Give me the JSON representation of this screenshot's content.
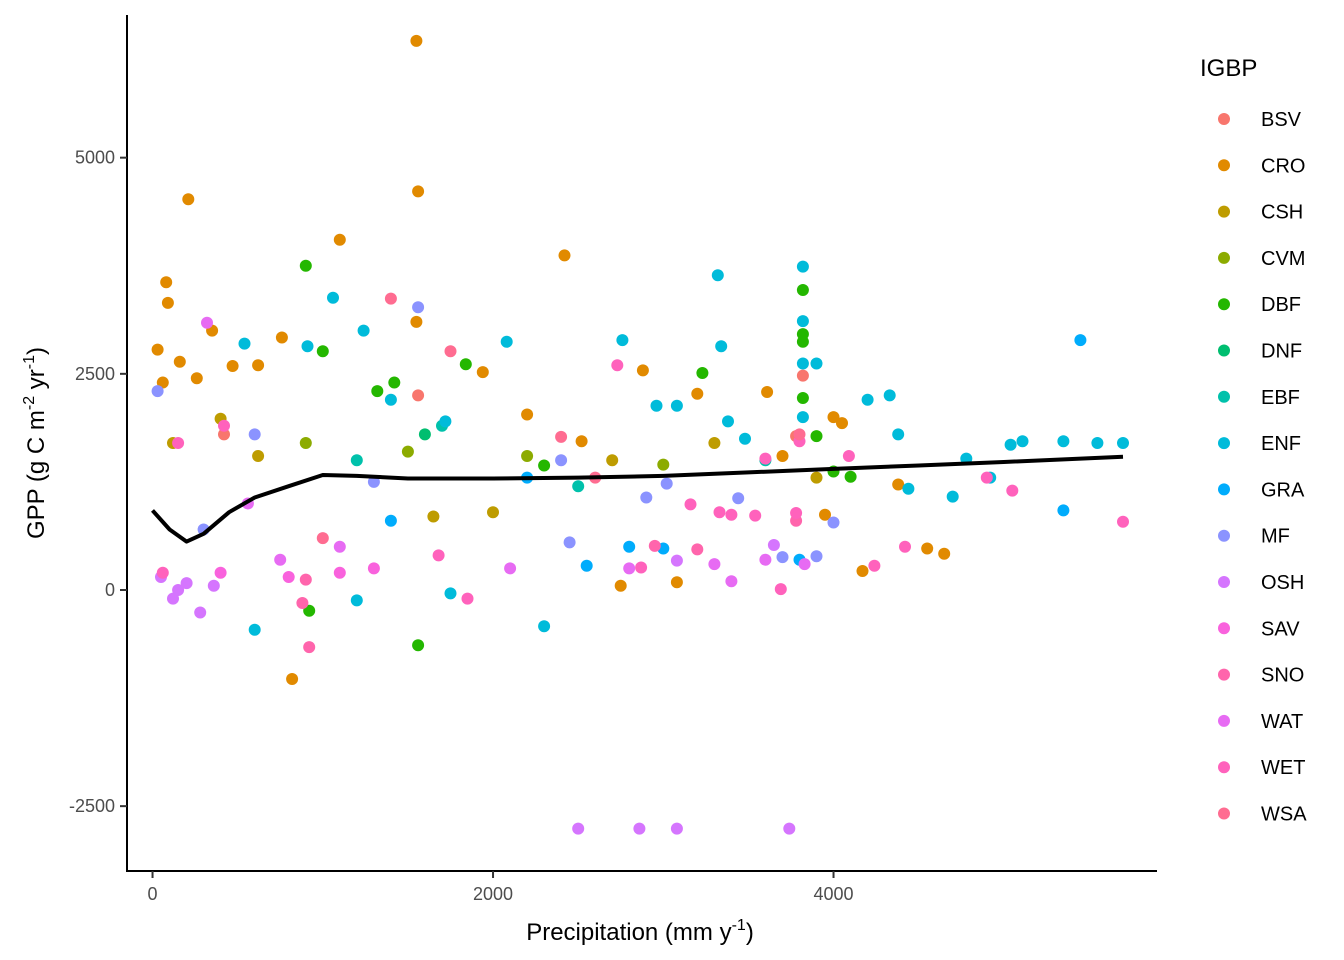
{
  "chart_data": {
    "type": "scatter",
    "title": "",
    "xlabel": {
      "main": "Precipitation (mm y",
      "sup": "-1",
      "end": ")"
    },
    "ylabel": {
      "part1": "GPP (g C m",
      "sup1": "-2",
      "part2": " yr",
      "sup2": "-1",
      "end": ")"
    },
    "xlim": [
      -150,
      5900
    ],
    "ylim": [
      -3250,
      6650
    ],
    "xticks": [
      0,
      2000,
      4000
    ],
    "yticks": [
      -2500,
      0,
      2500,
      5000
    ],
    "legend": {
      "title": "IGBP",
      "placement": "right",
      "entries": [
        {
          "label": "BSV",
          "color": "#F8766D"
        },
        {
          "label": "CRO",
          "color": "#E18A00"
        },
        {
          "label": "CSH",
          "color": "#BE9C00"
        },
        {
          "label": "CVM",
          "color": "#8CAB00"
        },
        {
          "label": "DBF",
          "color": "#24B700"
        },
        {
          "label": "DNF",
          "color": "#00BE70"
        },
        {
          "label": "EBF",
          "color": "#00C1AB"
        },
        {
          "label": "ENF",
          "color": "#00BBDA"
        },
        {
          "label": "GRA",
          "color": "#00ACFC"
        },
        {
          "label": "MF",
          "color": "#8B93FF"
        },
        {
          "label": "OSH",
          "color": "#D575FE"
        },
        {
          "label": "SAV",
          "color": "#F962DD"
        },
        {
          "label": "SNO",
          "color": "#FF65AC"
        },
        {
          "label": "WAT",
          "color": "#E76BF3"
        },
        {
          "label": "WET",
          "color": "#FF62BC"
        },
        {
          "label": "WSA",
          "color": "#FF6C91"
        }
      ]
    },
    "smooth_line": {
      "color": "#000000",
      "points": [
        [
          0,
          920
        ],
        [
          100,
          700
        ],
        [
          200,
          560
        ],
        [
          300,
          650
        ],
        [
          450,
          900
        ],
        [
          600,
          1070
        ],
        [
          800,
          1200
        ],
        [
          1000,
          1330
        ],
        [
          1200,
          1320
        ],
        [
          1500,
          1290
        ],
        [
          2000,
          1290
        ],
        [
          2500,
          1300
        ],
        [
          3000,
          1320
        ],
        [
          3500,
          1360
        ],
        [
          4000,
          1400
        ],
        [
          4500,
          1440
        ],
        [
          5000,
          1480
        ],
        [
          5700,
          1540
        ]
      ]
    },
    "series": [
      {
        "name": "BSV",
        "points": [
          [
            420,
            1800
          ],
          [
            1560,
            2250
          ],
          [
            3780,
            1780
          ],
          [
            3820,
            2480
          ]
        ]
      },
      {
        "name": "CRO",
        "points": [
          [
            30,
            2780
          ],
          [
            60,
            2400
          ],
          [
            80,
            3560
          ],
          [
            90,
            3320
          ],
          [
            210,
            4520
          ],
          [
            160,
            2640
          ],
          [
            260,
            2450
          ],
          [
            350,
            3000
          ],
          [
            470,
            2590
          ],
          [
            620,
            2600
          ],
          [
            760,
            2920
          ],
          [
            1100,
            4050
          ],
          [
            1550,
            3100
          ],
          [
            1560,
            4610
          ],
          [
            1550,
            6350
          ],
          [
            2420,
            3870
          ],
          [
            1940,
            2520
          ],
          [
            2200,
            2030
          ],
          [
            2520,
            1720
          ],
          [
            2880,
            2540
          ],
          [
            2750,
            50
          ],
          [
            3080,
            90
          ],
          [
            3200,
            2270
          ],
          [
            3610,
            2290
          ],
          [
            3700,
            1550
          ],
          [
            4000,
            2000
          ],
          [
            4050,
            1930
          ],
          [
            4170,
            220
          ],
          [
            4380,
            1220
          ],
          [
            4550,
            480
          ],
          [
            4650,
            420
          ],
          [
            820,
            -1030
          ],
          [
            3950,
            870
          ]
        ]
      },
      {
        "name": "CSH",
        "points": [
          [
            120,
            1700
          ],
          [
            400,
            1980
          ],
          [
            620,
            1550
          ],
          [
            1650,
            850
          ],
          [
            2000,
            900
          ],
          [
            2700,
            1500
          ],
          [
            3300,
            1700
          ],
          [
            3900,
            1300
          ]
        ]
      },
      {
        "name": "CVM",
        "points": [
          [
            900,
            1700
          ],
          [
            1500,
            1600
          ],
          [
            2200,
            1550
          ],
          [
            3000,
            1450
          ]
        ]
      },
      {
        "name": "DBF",
        "points": [
          [
            900,
            3750
          ],
          [
            1000,
            2760
          ],
          [
            1320,
            2300
          ],
          [
            1420,
            2400
          ],
          [
            1560,
            -640
          ],
          [
            920,
            -240
          ],
          [
            1840,
            2610
          ],
          [
            2300,
            1440
          ],
          [
            3230,
            2510
          ],
          [
            3820,
            3470
          ],
          [
            3820,
            2960
          ],
          [
            3820,
            2870
          ],
          [
            3820,
            2220
          ],
          [
            3900,
            1780
          ],
          [
            4000,
            1370
          ],
          [
            4100,
            1310
          ]
        ]
      },
      {
        "name": "DNF",
        "points": [
          [
            1600,
            1800
          ]
        ]
      },
      {
        "name": "EBF",
        "points": [
          [
            1200,
            1500
          ],
          [
            1700,
            1900
          ],
          [
            2500,
            1200
          ],
          [
            3600,
            1500
          ]
        ]
      },
      {
        "name": "ENF",
        "points": [
          [
            540,
            2850
          ],
          [
            910,
            2820
          ],
          [
            1060,
            3380
          ],
          [
            1240,
            3000
          ],
          [
            1400,
            2200
          ],
          [
            1720,
            1950
          ],
          [
            2080,
            2870
          ],
          [
            2760,
            2890
          ],
          [
            2960,
            2130
          ],
          [
            3080,
            2130
          ],
          [
            3320,
            3640
          ],
          [
            3340,
            2820
          ],
          [
            3380,
            1950
          ],
          [
            3480,
            1750
          ],
          [
            3820,
            3740
          ],
          [
            3820,
            3110
          ],
          [
            3820,
            2620
          ],
          [
            3820,
            2000
          ],
          [
            3900,
            2620
          ],
          [
            4200,
            2200
          ],
          [
            4330,
            2250
          ],
          [
            4380,
            1800
          ],
          [
            4440,
            1170
          ],
          [
            4700,
            1080
          ],
          [
            4780,
            1520
          ],
          [
            4920,
            1300
          ],
          [
            5040,
            1680
          ],
          [
            5110,
            1720
          ],
          [
            5350,
            1720
          ],
          [
            5550,
            1700
          ],
          [
            5700,
            1700
          ],
          [
            2300,
            -420
          ],
          [
            600,
            -460
          ],
          [
            1200,
            -120
          ],
          [
            1750,
            -40
          ]
        ]
      },
      {
        "name": "GRA",
        "points": [
          [
            5450,
            2890
          ],
          [
            5350,
            920
          ],
          [
            2550,
            280
          ],
          [
            2800,
            500
          ],
          [
            3000,
            480
          ],
          [
            3800,
            350
          ],
          [
            1400,
            800
          ],
          [
            2200,
            1300
          ]
        ]
      },
      {
        "name": "MF",
        "points": [
          [
            30,
            2300
          ],
          [
            1560,
            3270
          ],
          [
            600,
            1800
          ],
          [
            1300,
            1250
          ],
          [
            2400,
            1500
          ],
          [
            3020,
            1230
          ],
          [
            3700,
            380
          ],
          [
            3900,
            390
          ],
          [
            4000,
            780
          ],
          [
            2900,
            1070
          ],
          [
            3440,
            1060
          ],
          [
            2450,
            550
          ],
          [
            300,
            700
          ]
        ]
      },
      {
        "name": "OSH",
        "points": [
          [
            50,
            150
          ],
          [
            120,
            -100
          ],
          [
            200,
            80
          ],
          [
            280,
            -260
          ],
          [
            150,
            0
          ],
          [
            360,
            50
          ],
          [
            2500,
            -2760
          ],
          [
            2860,
            -2760
          ],
          [
            3080,
            -2760
          ],
          [
            3740,
            -2760
          ],
          [
            3650,
            520
          ],
          [
            3080,
            340
          ]
        ]
      },
      {
        "name": "SAV",
        "points": [
          [
            400,
            200
          ],
          [
            800,
            150
          ],
          [
            1100,
            200
          ],
          [
            1300,
            250
          ]
        ]
      },
      {
        "name": "SNO",
        "points": [
          [
            920,
            -660
          ],
          [
            880,
            -150
          ],
          [
            900,
            120
          ],
          [
            2950,
            510
          ],
          [
            3200,
            470
          ],
          [
            3780,
            800
          ]
        ]
      },
      {
        "name": "WAT",
        "points": [
          [
            320,
            3090
          ],
          [
            560,
            1000
          ],
          [
            750,
            350
          ],
          [
            1100,
            500
          ],
          [
            2100,
            250
          ],
          [
            2800,
            250
          ],
          [
            3300,
            300
          ],
          [
            3400,
            100
          ],
          [
            3600,
            350
          ],
          [
            3830,
            300
          ]
        ]
      },
      {
        "name": "WET",
        "points": [
          [
            60,
            200
          ],
          [
            150,
            1700
          ],
          [
            420,
            1900
          ],
          [
            2730,
            2600
          ],
          [
            2870,
            260
          ],
          [
            3160,
            990
          ],
          [
            3330,
            900
          ],
          [
            3400,
            870
          ],
          [
            3540,
            860
          ],
          [
            3600,
            1520
          ],
          [
            3780,
            890
          ],
          [
            3800,
            1720
          ],
          [
            4090,
            1550
          ],
          [
            4240,
            280
          ],
          [
            4420,
            500
          ],
          [
            4900,
            1300
          ],
          [
            5050,
            1150
          ],
          [
            5700,
            790
          ],
          [
            3690,
            10
          ],
          [
            1850,
            -100
          ],
          [
            1680,
            400
          ]
        ]
      },
      {
        "name": "WSA",
        "points": [
          [
            1400,
            3370
          ],
          [
            1750,
            2760
          ],
          [
            2400,
            1770
          ],
          [
            2600,
            1300
          ],
          [
            1000,
            600
          ],
          [
            3800,
            1800
          ]
        ]
      }
    ]
  }
}
